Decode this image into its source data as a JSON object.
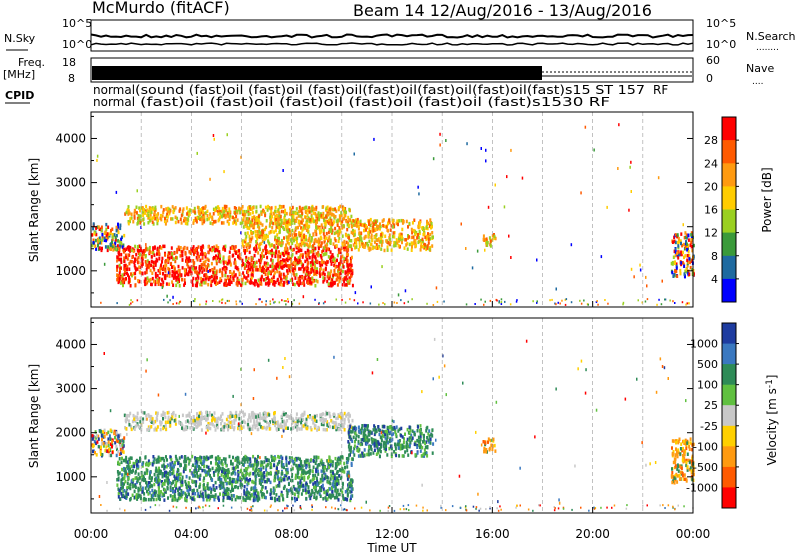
{
  "header": {
    "title": "McMurdo (fitACF)",
    "beam_info": "Beam 14 12/Aug/2016 - 13/Aug/2016"
  },
  "top_panel": {
    "left_labels": {
      "nsky": "N.Sky",
      "freq": "Freq.",
      "freq_unit": "[MHz]",
      "cpid": "CPID"
    },
    "right_labels": {
      "nsearch": "N.Search",
      "nsearch_dots": "........",
      "nave": "Nave",
      "nave_dots": "...."
    },
    "ticks_left": {
      "noise_top": "10^5",
      "noise_bottom": "10^0",
      "freq_top": "18",
      "freq_bottom": "8"
    },
    "ticks_right": {
      "noise_top": "10^5",
      "noise_bottom": "10^0",
      "nave_top": "60",
      "nave_bottom": "0"
    },
    "cpid_labels": {
      "first": "normal",
      "second": "normal",
      "jumbled_row1": "(sound (fast)oil (fast)oil (fast)oil(fast)oil(fast)oil(fast)oil(fast)s15 ST 157",
      "jumbled_row2": "(fast)oil (fast)oil (fast)oil (fast)oil (fast)oil (fast)s1530 RF",
      "end": "RF"
    }
  },
  "chart_data": [
    {
      "type": "heatmap",
      "name": "Power",
      "ylabel": "Slant Range [km]",
      "ylim": [
        180,
        4600
      ],
      "yticks": [
        "1000",
        "2000",
        "3000",
        "4000"
      ],
      "colorbar": {
        "label": "Power [dB]",
        "ticks": [
          "28",
          "24",
          "20",
          "16",
          "12",
          "8",
          "4"
        ],
        "colors": [
          "#ff0000",
          "#ff5a00",
          "#ff9a10",
          "#ffcc00",
          "#9ad020",
          "#3a9a3a",
          "#1e6aa0",
          "#0000ff"
        ]
      },
      "scatter_blobs": [
        {
          "t0": 0.0,
          "t1": 1.3,
          "r0": 1500,
          "r1": 2100,
          "level": "mixed"
        },
        {
          "t0": 1.0,
          "t1": 10.4,
          "r0": 700,
          "r1": 1600,
          "level": "high"
        },
        {
          "t0": 1.3,
          "t1": 10.4,
          "r0": 2100,
          "r1": 2500,
          "level": "mid"
        },
        {
          "t0": 6.0,
          "t1": 10.2,
          "r0": 1600,
          "r1": 2200,
          "level": "mid"
        },
        {
          "t0": 10.2,
          "t1": 13.6,
          "r0": 1500,
          "r1": 2200,
          "level": "mid"
        },
        {
          "t0": 15.6,
          "t1": 16.1,
          "r0": 1600,
          "r1": 1900,
          "level": "mid"
        },
        {
          "t0": 23.1,
          "t1": 24.0,
          "r0": 900,
          "r1": 1900,
          "level": "mixed"
        }
      ]
    },
    {
      "type": "heatmap",
      "name": "Velocity",
      "ylabel": "Slant Range [km]",
      "xlabel": "Time UT",
      "ylim": [
        180,
        4600
      ],
      "yticks": [
        "1000",
        "2000",
        "3000",
        "4000"
      ],
      "xticks": [
        "00:00",
        "04:00",
        "08:00",
        "12:00",
        "16:00",
        "20:00",
        "00:00"
      ],
      "xlim": [
        0,
        24
      ],
      "colorbar": {
        "label": "Velocity [m s^-1]",
        "ticks": [
          "1000",
          "500",
          "100",
          "25",
          "-25",
          "-100",
          "-500",
          "-1000"
        ],
        "colors": [
          "#1e3ca0",
          "#3a78c0",
          "#2e8b57",
          "#60c040",
          "#c8c8c8",
          "#ffd000",
          "#ff9a10",
          "#ff5a00",
          "#ff0000"
        ]
      },
      "scatter_blobs": [
        {
          "t0": 0.0,
          "t1": 1.3,
          "r0": 1500,
          "r1": 2100,
          "level": "mixed"
        },
        {
          "t0": 1.0,
          "t1": 10.4,
          "r0": 500,
          "r1": 1500,
          "level": "green"
        },
        {
          "t0": 1.3,
          "t1": 10.4,
          "r0": 2100,
          "r1": 2500,
          "level": "grey"
        },
        {
          "t0": 10.2,
          "t1": 13.6,
          "r0": 1500,
          "r1": 2200,
          "level": "green"
        },
        {
          "t0": 15.6,
          "t1": 16.1,
          "r0": 1600,
          "r1": 1900,
          "level": "orange"
        },
        {
          "t0": 23.1,
          "t1": 24.0,
          "r0": 900,
          "r1": 1900,
          "level": "orange"
        }
      ]
    }
  ]
}
